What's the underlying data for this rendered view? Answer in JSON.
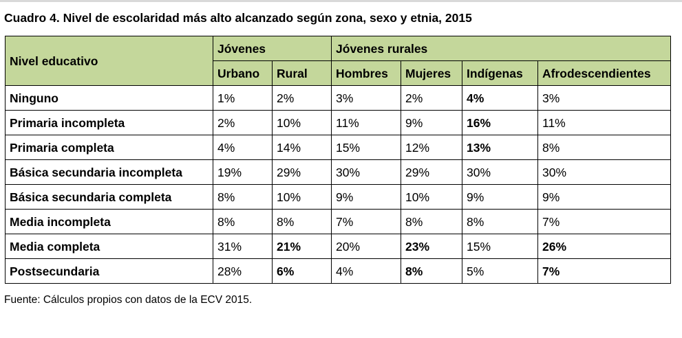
{
  "caption": "Cuadro 4. Nivel de escolaridad más alto alcanzado según zona, sexo y etnia, 2015",
  "header": {
    "row_label": "Nivel educativo",
    "groups": [
      "Jóvenes",
      "Jóvenes rurales"
    ],
    "columns": [
      "Urbano",
      "Rural",
      "Hombres",
      "Mujeres",
      "Indígenas",
      "Afrodescendientes"
    ]
  },
  "rows": [
    {
      "label": "Ninguno",
      "values": [
        "1%",
        "2%",
        "3%",
        "2%",
        "4%",
        "3%"
      ],
      "bold": [
        false,
        false,
        false,
        false,
        true,
        false
      ]
    },
    {
      "label": "Primaria incompleta",
      "values": [
        "2%",
        "10%",
        "11%",
        "9%",
        "16%",
        "11%"
      ],
      "bold": [
        false,
        false,
        false,
        false,
        true,
        false
      ]
    },
    {
      "label": "Primaria completa",
      "values": [
        "4%",
        "14%",
        "15%",
        "12%",
        "13%",
        "8%"
      ],
      "bold": [
        false,
        false,
        false,
        false,
        true,
        false
      ]
    },
    {
      "label": "Básica secundaria incompleta",
      "values": [
        "19%",
        "29%",
        "30%",
        "29%",
        "30%",
        "30%"
      ],
      "bold": [
        false,
        false,
        false,
        false,
        false,
        false
      ]
    },
    {
      "label": "Básica secundaria completa",
      "values": [
        "8%",
        "10%",
        "9%",
        "10%",
        "9%",
        "9%"
      ],
      "bold": [
        false,
        false,
        false,
        false,
        false,
        false
      ]
    },
    {
      "label": "Media incompleta",
      "values": [
        "8%",
        "8%",
        "7%",
        "8%",
        "8%",
        "7%"
      ],
      "bold": [
        false,
        false,
        false,
        false,
        false,
        false
      ]
    },
    {
      "label": "Media completa",
      "values": [
        "31%",
        "21%",
        "20%",
        "23%",
        "15%",
        "26%"
      ],
      "bold": [
        false,
        true,
        false,
        true,
        false,
        true
      ]
    },
    {
      "label": "Postsecundaria",
      "values": [
        "28%",
        "6%",
        "4%",
        "8%",
        "5%",
        "7%"
      ],
      "bold": [
        false,
        true,
        false,
        true,
        false,
        true
      ]
    }
  ],
  "source": "Fuente: Cálculos propios con datos de la ECV 2015."
}
